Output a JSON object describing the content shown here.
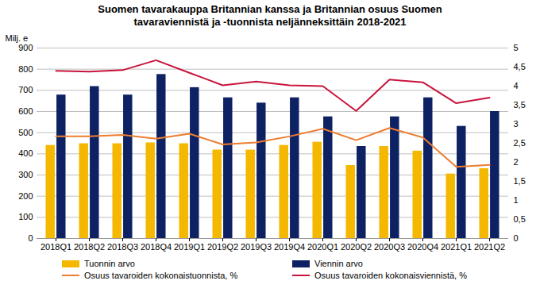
{
  "chart_data": {
    "type": "bar",
    "title": "Suomen tavarakauppa Britannian kanssa ja Britannian osuus Suomen tavaraviennistä ja -tuonnista neljänneksittäin 2018-2021",
    "y_label": "Milj. e",
    "categories": [
      "2018Q1",
      "2018Q2",
      "2018Q3",
      "2018Q4",
      "2019Q1",
      "2019Q2",
      "2019Q3",
      "2019Q4",
      "2020Q1",
      "2020Q2",
      "2020Q3",
      "2020Q4",
      "2021Q1",
      "2021Q2"
    ],
    "series": [
      {
        "name": "Tuonnin arvo",
        "type": "bar",
        "color": "#F5B800",
        "values": [
          440,
          448,
          448,
          452,
          448,
          418,
          418,
          440,
          455,
          345,
          435,
          413,
          305,
          330
        ]
      },
      {
        "name": "Viennin arvo",
        "type": "bar",
        "color": "#0D2163",
        "values": [
          678,
          718,
          678,
          775,
          713,
          665,
          640,
          665,
          575,
          435,
          575,
          665,
          530,
          600
        ]
      },
      {
        "name": "Osuus tavaroiden kokonaistuonnista, %",
        "type": "line",
        "axis": "y2",
        "color": "#ED7D31",
        "values": [
          2.68,
          2.68,
          2.72,
          2.62,
          2.75,
          2.47,
          2.52,
          2.68,
          2.88,
          2.58,
          2.9,
          2.65,
          1.88,
          1.93
        ]
      },
      {
        "name": "Osuus tavaroiden kokonaisviennistä, %",
        "type": "line",
        "axis": "y2",
        "color": "#C8143C",
        "values": [
          4.4,
          4.38,
          4.42,
          4.68,
          4.35,
          4.02,
          4.12,
          4.02,
          4.0,
          3.35,
          4.17,
          4.1,
          3.55,
          3.7
        ]
      }
    ],
    "ylim": [
      0,
      900
    ],
    "yticks": [
      0,
      100,
      200,
      300,
      400,
      500,
      600,
      700,
      800,
      900
    ],
    "y2lim": [
      0,
      5
    ],
    "y2ticks": [
      0,
      {
        "value": 0.5,
        "label": "0,5"
      },
      1,
      {
        "value": 1.5,
        "label": "1,5"
      },
      2,
      {
        "value": 2.5,
        "label": "2,5"
      },
      3,
      {
        "value": 3.5,
        "label": "3,5"
      },
      4,
      {
        "value": 4.5,
        "label": "4,5"
      },
      5
    ],
    "grid": true,
    "legend": "bottom"
  }
}
